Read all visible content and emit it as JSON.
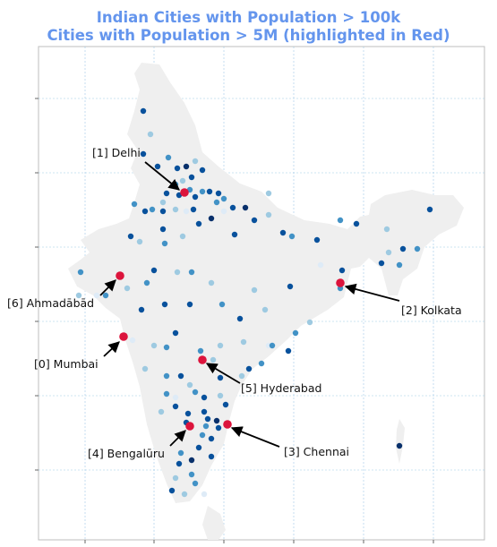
{
  "title": {
    "line1": "Indian Cities with Population > 100k",
    "line2": "Cities with Population > 5M (highlighted in Red)",
    "color": "#6495ed"
  },
  "colors": {
    "land": "#efefef",
    "highlight": "#dc143c",
    "grid": "#9ec9e6",
    "frame": "#bdbdbd",
    "dot_scale": [
      "#deebf7",
      "#9ecae1",
      "#4292c6",
      "#08519c",
      "#08306b"
    ]
  },
  "major_cities": [
    {
      "label": "[0] Mumbai",
      "name": "Mumbai"
    },
    {
      "label": "[1] Delhi",
      "name": "Delhi"
    },
    {
      "label": "[2] Kolkata",
      "name": "Kolkata"
    },
    {
      "label": "[3] Chennai",
      "name": "Chennai"
    },
    {
      "label": "[4] Bengalūru",
      "name": "Bengalūru"
    },
    {
      "label": "[5] Hyderabad",
      "name": "Hyderabad"
    },
    {
      "label": "[6] Ahmadābād",
      "name": "Ahmadābād"
    }
  ]
}
